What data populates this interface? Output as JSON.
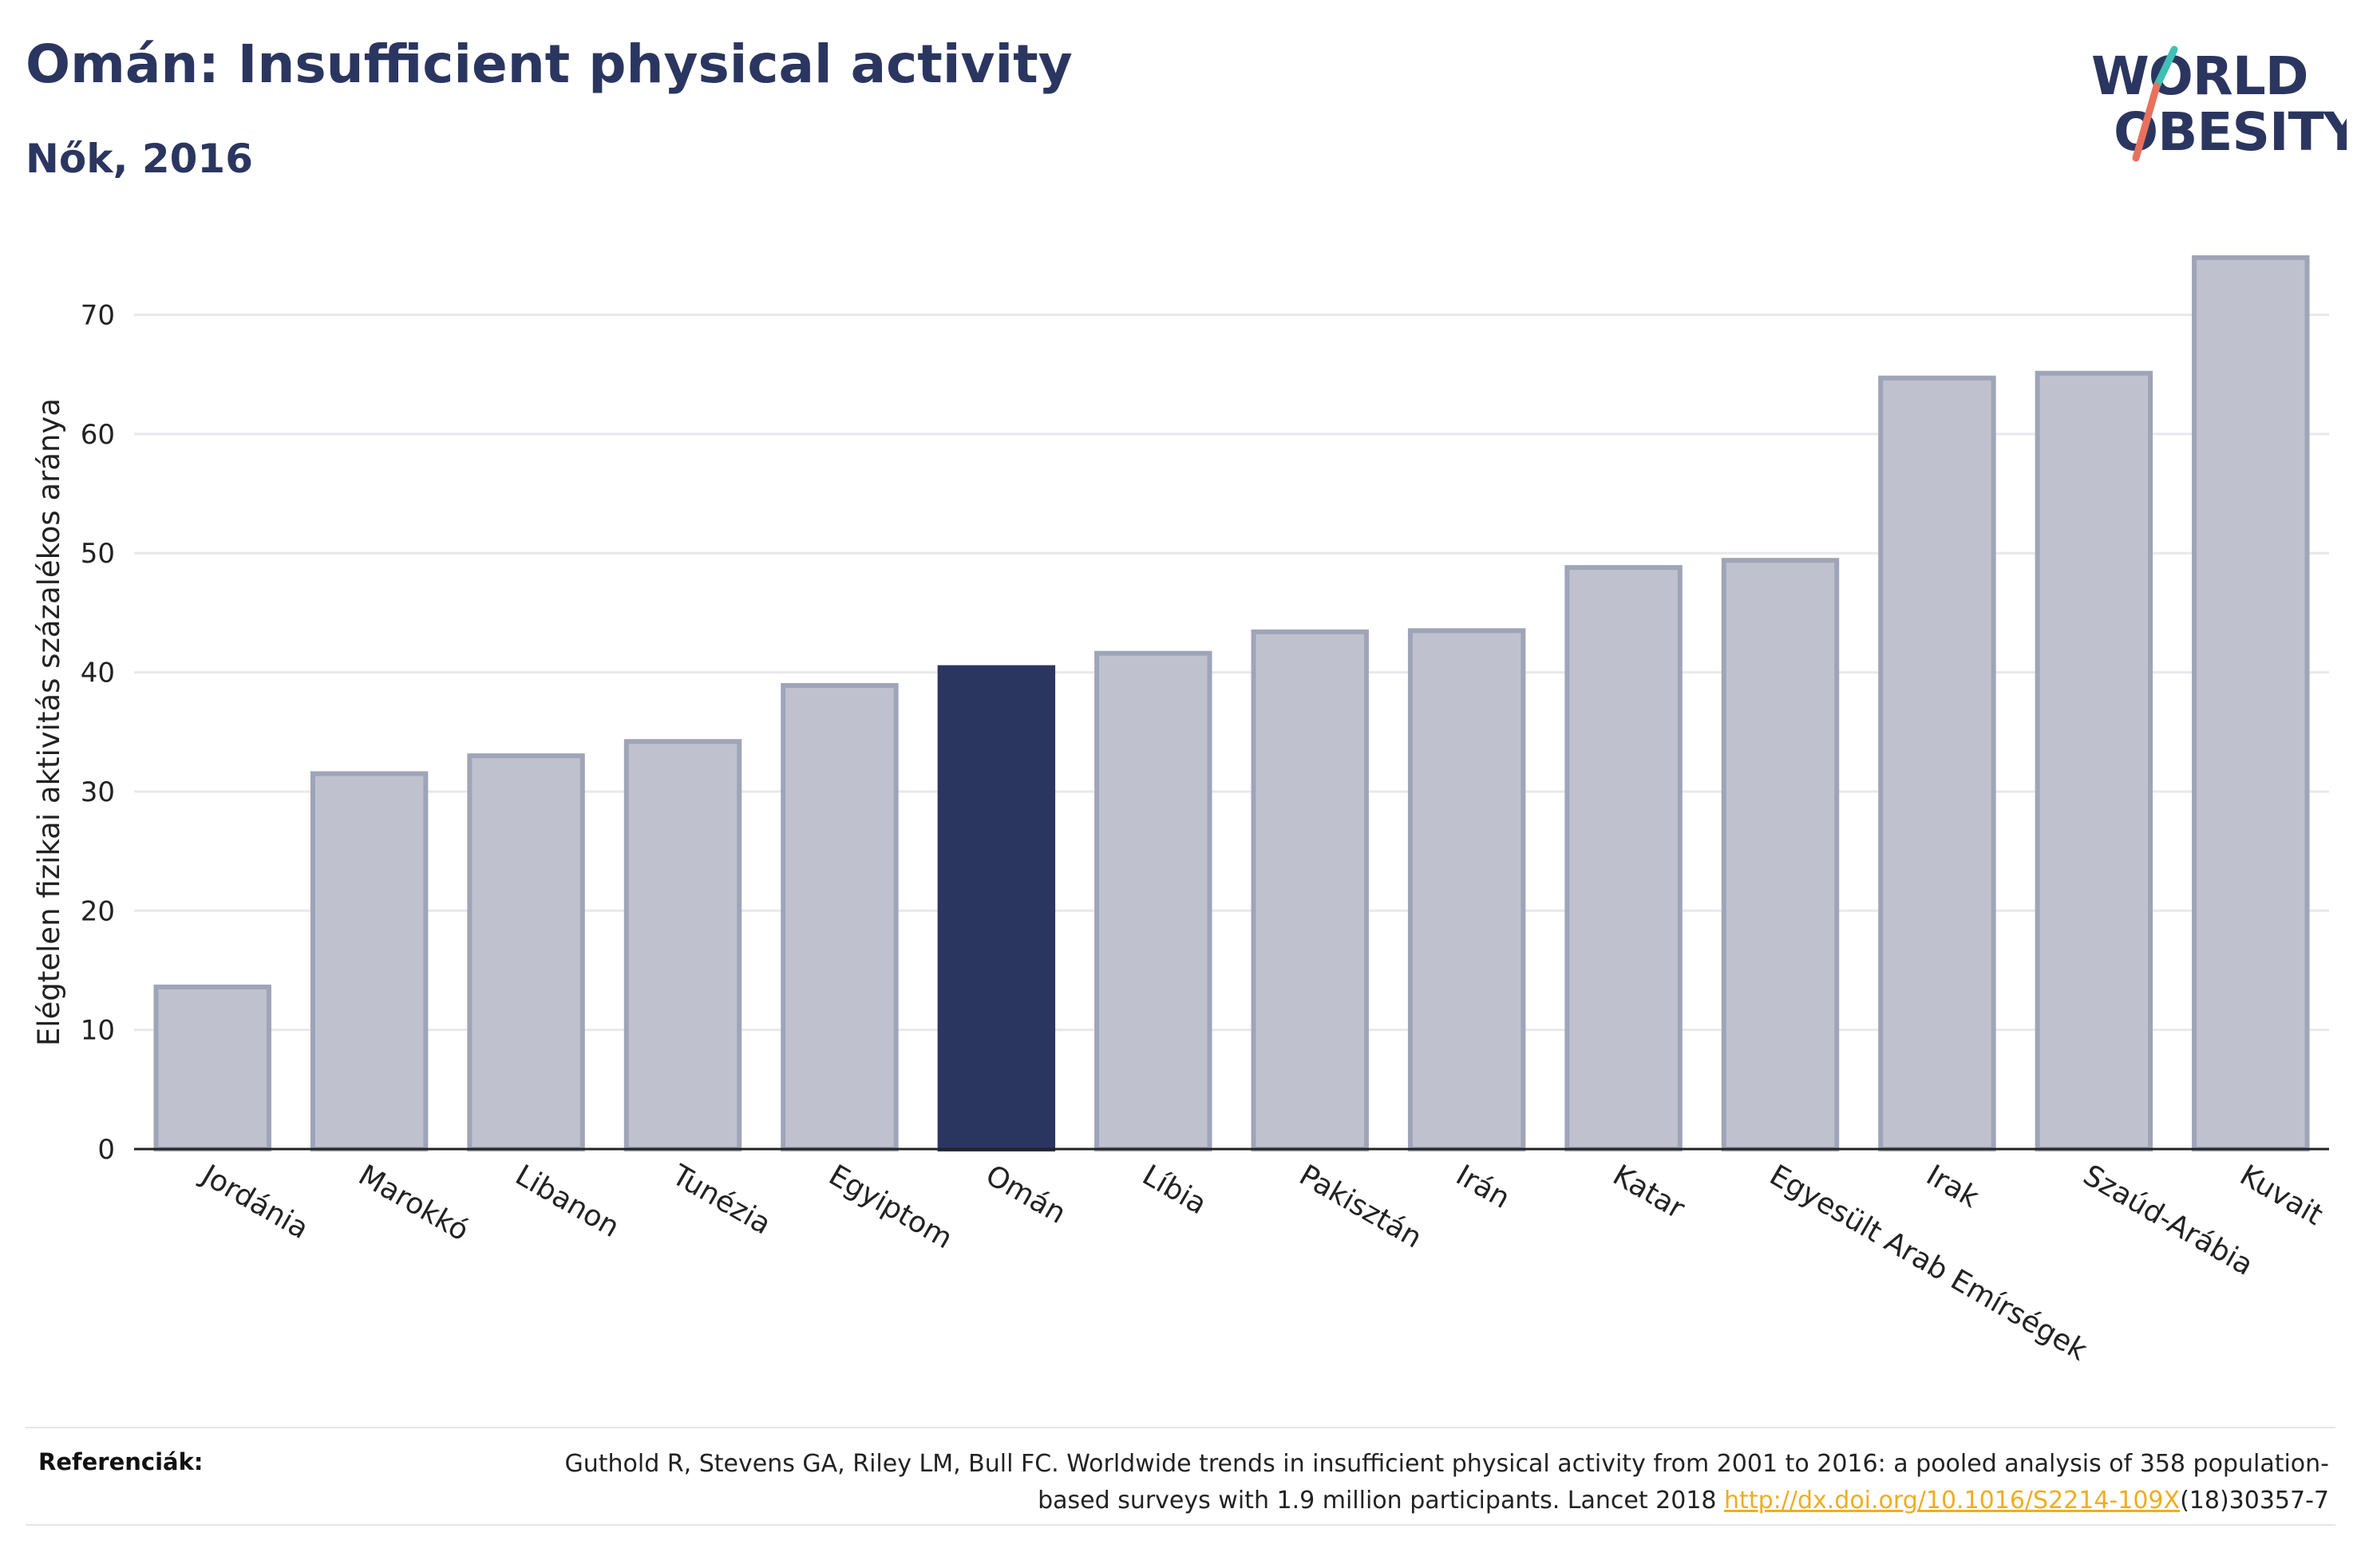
{
  "header": {
    "title": "Omán: Insufficient physical activity",
    "subtitle": "Nők, 2016"
  },
  "logo": {
    "line1": "WORLD",
    "line2": "OBESITY",
    "text_color": "#2b3660",
    "accent_teal": "#3fbfb5",
    "accent_coral": "#e8715d"
  },
  "chart_data": {
    "type": "bar",
    "ylabel": "Elégtelen fizikai aktivitás százalékos aránya",
    "xlabel": "",
    "ylim": [
      0,
      77
    ],
    "yticks": [
      0,
      10,
      20,
      30,
      40,
      50,
      60,
      70
    ],
    "grid": true,
    "highlight": "Omán",
    "colors": {
      "bar": "#bfc2ce",
      "bar_edge": "#9fa4b8",
      "highlight": "#2b3660"
    },
    "categories": [
      "Jordánia",
      "Marokkó",
      "Libanon",
      "Tunézia",
      "Egyiptom",
      "Omán",
      "Líbia",
      "Pakisztán",
      "Irán",
      "Katar",
      "Egyesült Arab Emírségek",
      "Irak",
      "Szaúd-Arábia",
      "Kuvait"
    ],
    "values": [
      13.6,
      31.5,
      33.0,
      34.2,
      38.9,
      40.4,
      41.6,
      43.4,
      43.5,
      48.8,
      49.4,
      64.7,
      65.1,
      74.8
    ]
  },
  "footer": {
    "label": "Referenciák:",
    "citation_before": "Guthold R, Stevens GA, Riley LM, Bull FC. Worldwide trends in insufficient physical activity from 2001 to 2016: a pooled analysis of 358 population-based surveys with 1.9 million participants. Lancet 2018 ",
    "link_text": "http://dx.doi.org/10.1016/S2214-109X",
    "citation_after": "(18)30357-7"
  }
}
